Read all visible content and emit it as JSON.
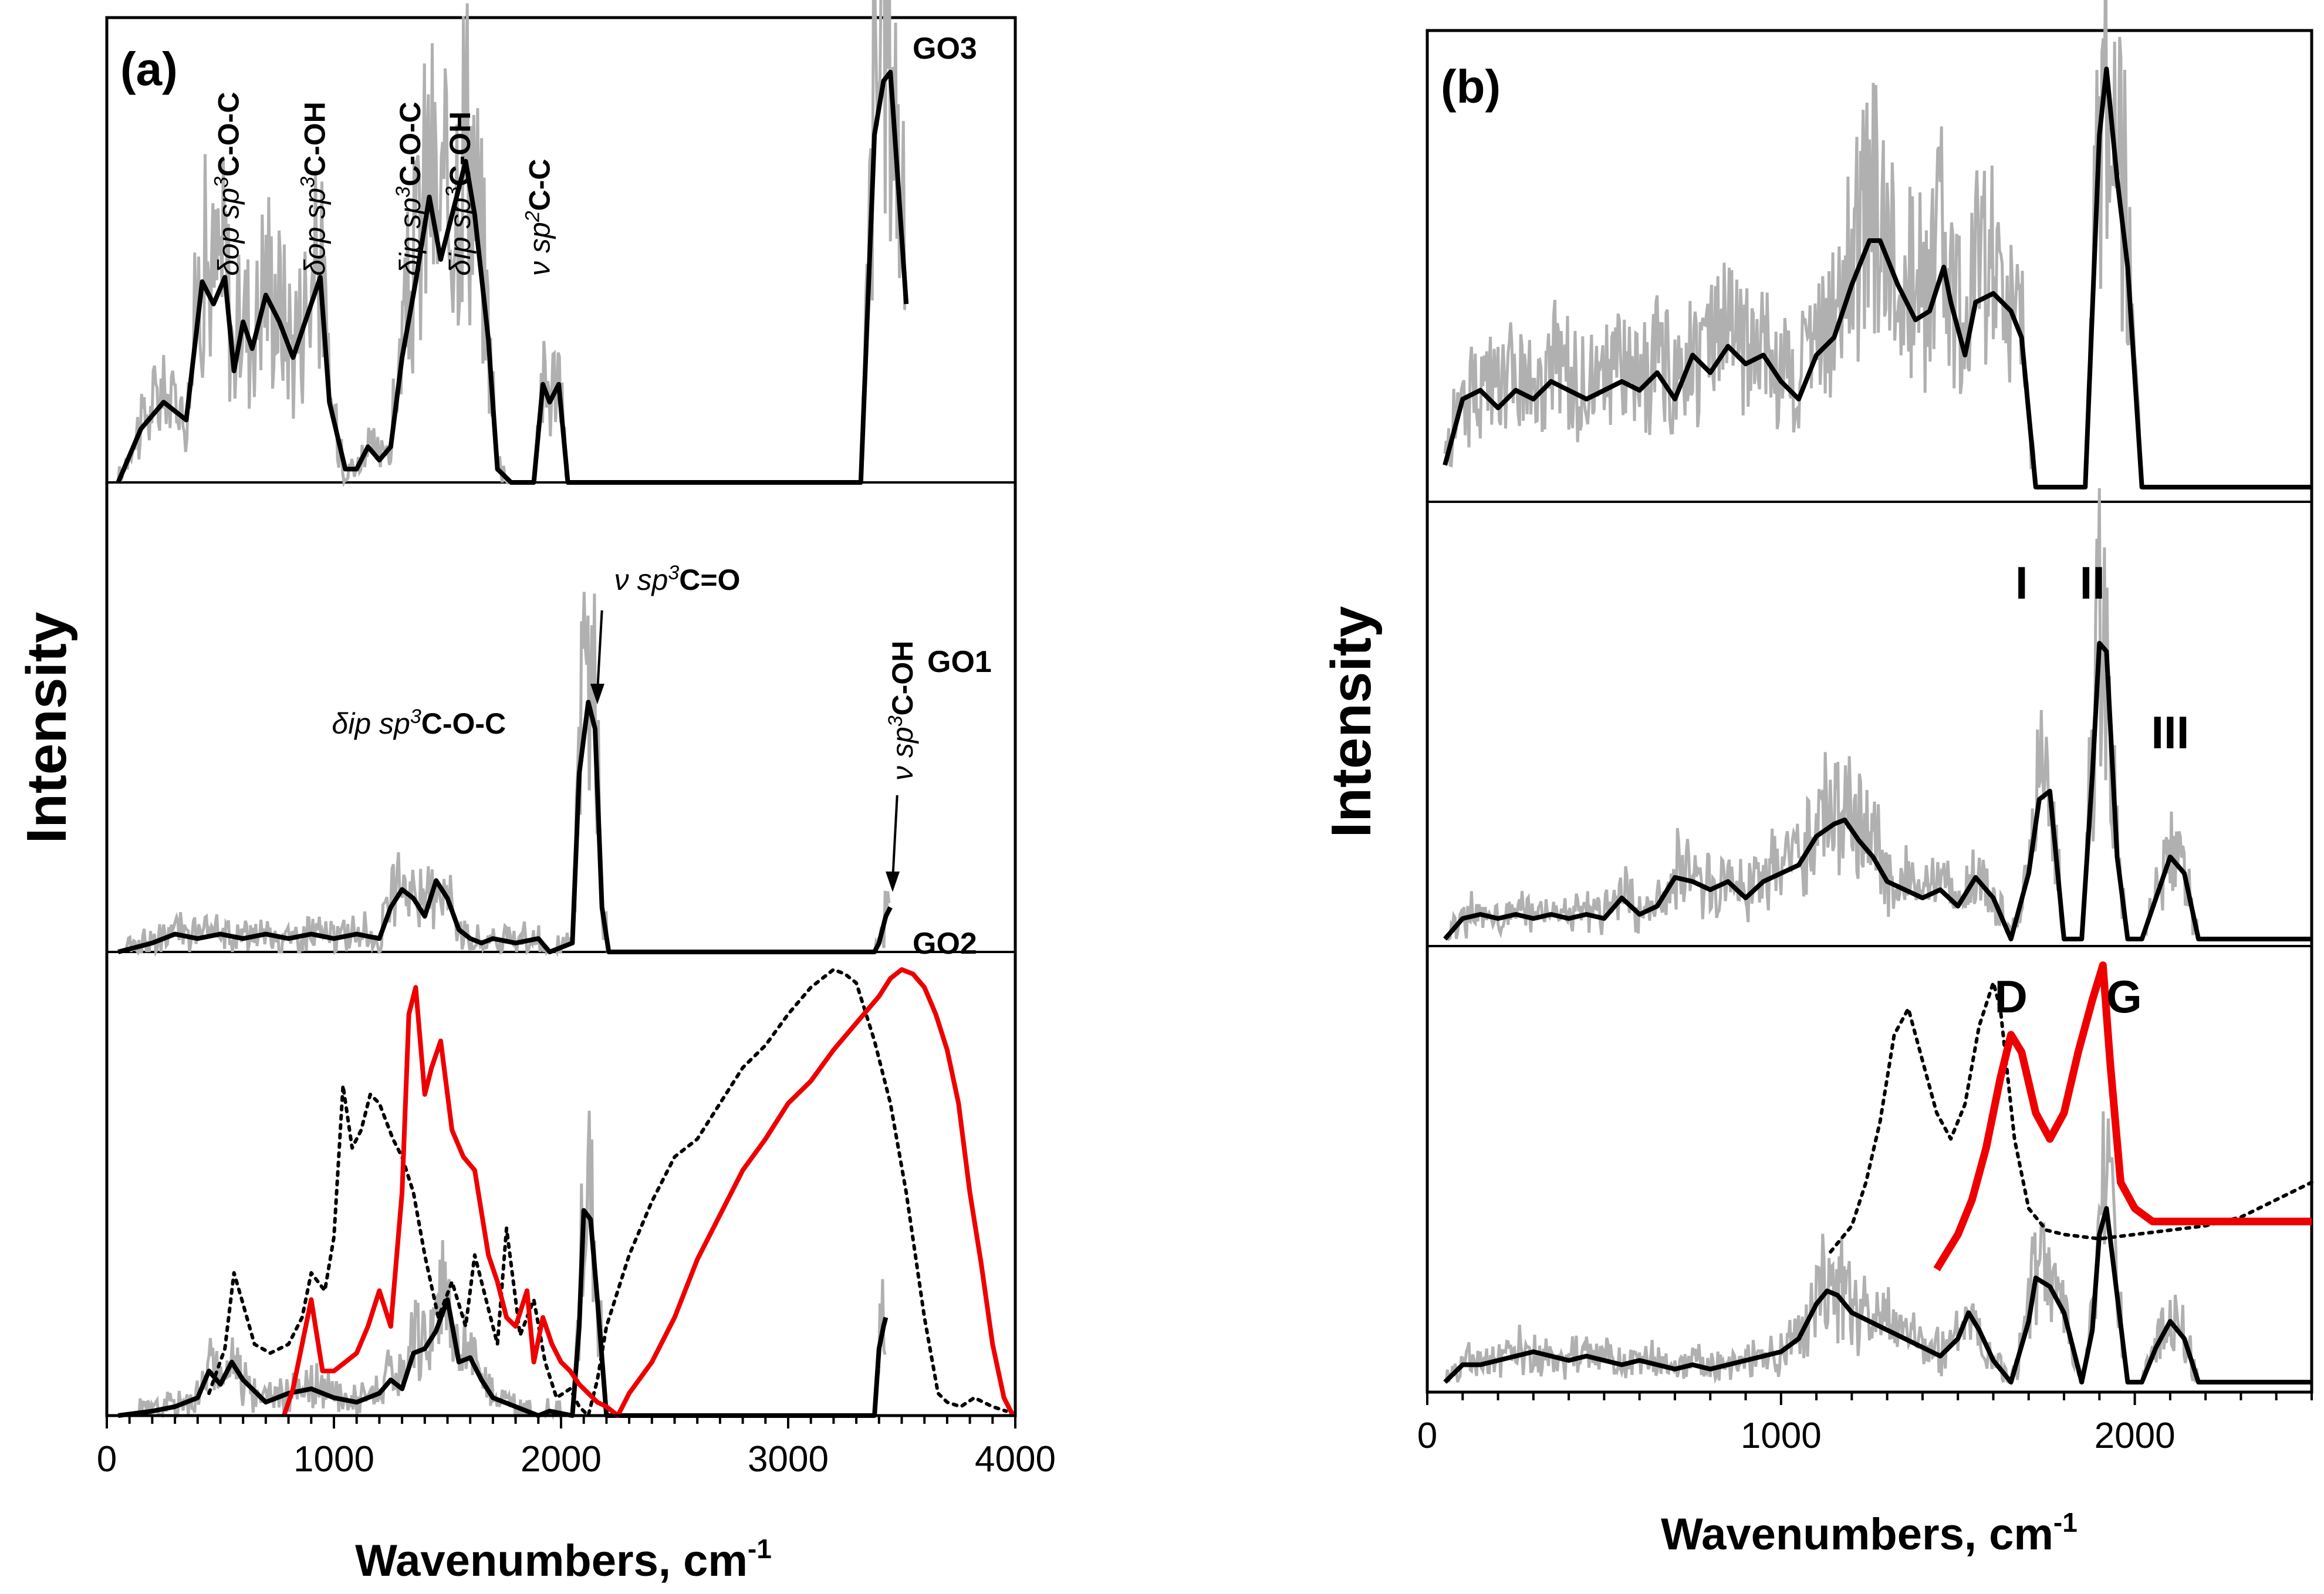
{
  "chart_data": [
    {
      "type": "line",
      "panel": "(a)",
      "xlabel": "Wavenumbers, cm",
      "xlabel_sup": "-1",
      "ylabel": "Intensity",
      "xlim": [
        0,
        4000
      ],
      "xticks": [
        0,
        1000,
        2000,
        3000,
        4000
      ],
      "tick_labels": [
        "0",
        "1000",
        "2000",
        "3000",
        "4000"
      ],
      "trace_labels": [
        "GO3",
        "GO1",
        "GO2"
      ],
      "annotations": [
        {
          "sym": "δ",
          "mode": "op",
          "hyb": "3",
          "group": "C-O-C",
          "x": 580
        },
        {
          "sym": "δ",
          "mode": "op",
          "hyb": "3",
          "group": "C-OH",
          "x": 960
        },
        {
          "sym": "δ",
          "mode": "ip",
          "hyb": "3",
          "group": "C-O-C",
          "x": 1380
        },
        {
          "sym": "δ",
          "mode": "ip",
          "hyb": "3",
          "group": "C-OH",
          "x": 1600
        },
        {
          "sym": "ν",
          "mode": "",
          "hyb": "2",
          "group": "C-C",
          "x": 1950
        }
      ],
      "go1_annotations": [
        {
          "sym": "δ",
          "mode": "ip",
          "hyb": "3",
          "group": "C-O-C",
          "x": 1400
        },
        {
          "sym": "ν",
          "mode": "",
          "hyb": "3",
          "group": "C=O",
          "x": 2150
        },
        {
          "sym": "ν",
          "mode": "",
          "hyb": "3",
          "group": "C-OH",
          "x": 3470
        }
      ],
      "series": [
        {
          "name": "GO3 smoothed",
          "trace": "GO3",
          "color": "#000000",
          "x": [
            50,
            150,
            250,
            350,
            420,
            470,
            520,
            560,
            600,
            640,
            700,
            760,
            820,
            900,
            940,
            980,
            1050,
            1100,
            1150,
            1200,
            1250,
            1300,
            1360,
            1420,
            1470,
            1520,
            1580,
            1620,
            1680,
            1720,
            1780,
            1880,
            1920,
            1950,
            1990,
            2030,
            3320,
            3380,
            3420,
            3450,
            3480,
            3520
          ],
          "y": [
            0,
            0.12,
            0.18,
            0.14,
            0.45,
            0.4,
            0.46,
            0.25,
            0.36,
            0.3,
            0.42,
            0.36,
            0.28,
            0.4,
            0.46,
            0.18,
            0.03,
            0.03,
            0.08,
            0.05,
            0.08,
            0.28,
            0.45,
            0.64,
            0.5,
            0.6,
            0.72,
            0.6,
            0.32,
            0.03,
            0,
            0,
            0.22,
            0.18,
            0.22,
            0,
            0,
            0.78,
            0.9,
            0.92,
            0.7,
            0.4
          ]
        },
        {
          "name": "GO1 smoothed",
          "trace": "GO1",
          "color": "#000000",
          "x": [
            50,
            200,
            300,
            400,
            500,
            600,
            700,
            800,
            900,
            1000,
            1100,
            1200,
            1250,
            1300,
            1350,
            1400,
            1450,
            1500,
            1550,
            1600,
            1650,
            1700,
            1800,
            1900,
            1950,
            2050,
            2080,
            2120,
            2150,
            2180,
            2210,
            3380,
            3400,
            3430,
            3450
          ],
          "y": [
            0,
            0.02,
            0.04,
            0.03,
            0.04,
            0.03,
            0.04,
            0.03,
            0.04,
            0.03,
            0.04,
            0.03,
            0.1,
            0.14,
            0.12,
            0.08,
            0.16,
            0.12,
            0.05,
            0.03,
            0.02,
            0.03,
            0.02,
            0.03,
            0,
            0.02,
            0.4,
            0.56,
            0.5,
            0.1,
            0,
            0,
            0.02,
            0.08,
            0.1
          ]
        },
        {
          "name": "GO2 smoothed",
          "trace": "GO2",
          "color": "#000000",
          "x": [
            50,
            200,
            300,
            400,
            450,
            500,
            550,
            600,
            700,
            800,
            900,
            1000,
            1100,
            1200,
            1250,
            1300,
            1350,
            1400,
            1450,
            1500,
            1550,
            1600,
            1650,
            1700,
            1800,
            1900,
            1950,
            2050,
            2080,
            2100,
            2130,
            2160,
            2200,
            3380,
            3400,
            3420,
            3430
          ],
          "y": [
            0,
            0.01,
            0.02,
            0.04,
            0.1,
            0.07,
            0.12,
            0.08,
            0.03,
            0.05,
            0.06,
            0.04,
            0.03,
            0.05,
            0.08,
            0.06,
            0.14,
            0.15,
            0.19,
            0.26,
            0.12,
            0.13,
            0.08,
            0.04,
            0.02,
            0,
            0.01,
            0,
            0.2,
            0.46,
            0.44,
            0.26,
            0,
            0,
            0.15,
            0.2,
            0.22
          ]
        },
        {
          "name": "GO2 IR (dotted)",
          "trace": "GO2",
          "color": "#000000",
          "dash": "dotted",
          "x": [
            450,
            520,
            560,
            600,
            650,
            720,
            800,
            860,
            900,
            960,
            1000,
            1040,
            1080,
            1120,
            1160,
            1200,
            1260,
            1300,
            1350,
            1400,
            1460,
            1520,
            1580,
            1620,
            1660,
            1720,
            1760,
            1820,
            1880,
            1930,
            1980,
            2040,
            2080,
            2120,
            2160,
            2200,
            2300,
            2400,
            2500,
            2600,
            2700,
            2800,
            2900,
            3000,
            3100,
            3200,
            3250,
            3300,
            3380,
            3450,
            3520,
            3600,
            3660,
            3700,
            3760,
            3820,
            3900,
            3960
          ],
          "y": [
            0.05,
            0.15,
            0.32,
            0.25,
            0.16,
            0.14,
            0.16,
            0.22,
            0.32,
            0.28,
            0.4,
            0.74,
            0.6,
            0.64,
            0.72,
            0.7,
            0.62,
            0.58,
            0.5,
            0.36,
            0.22,
            0.3,
            0.2,
            0.36,
            0.28,
            0.16,
            0.42,
            0.18,
            0.26,
            0.12,
            0.04,
            0.06,
            0.02,
            0,
            0.08,
            0.2,
            0.36,
            0.48,
            0.58,
            0.62,
            0.7,
            0.78,
            0.83,
            0.9,
            0.96,
            1,
            0.99,
            0.97,
            0.84,
            0.7,
            0.5,
            0.22,
            0.05,
            0.03,
            0.02,
            0.04,
            0.02,
            0.01
          ]
        },
        {
          "name": "GO2 red",
          "trace": "GO2",
          "color": "#ee0000",
          "x": [
            780,
            820,
            860,
            900,
            950,
            1000,
            1050,
            1100,
            1150,
            1200,
            1250,
            1300,
            1330,
            1360,
            1400,
            1430,
            1470,
            1520,
            1570,
            1620,
            1680,
            1720,
            1760,
            1800,
            1850,
            1880,
            1920,
            1960,
            2000,
            2040,
            2080,
            2120,
            2160,
            2200,
            2250,
            2300,
            2400,
            2500,
            2600,
            2700,
            2800,
            2900,
            3000,
            3100,
            3200,
            3300,
            3400,
            3450,
            3500,
            3550,
            3600,
            3650,
            3700,
            3750,
            3800,
            3850,
            3900,
            3950,
            3990
          ],
          "y": [
            0,
            0.06,
            0.16,
            0.26,
            0.1,
            0.1,
            0.12,
            0.14,
            0.2,
            0.28,
            0.2,
            0.5,
            0.9,
            0.96,
            0.72,
            0.78,
            0.84,
            0.64,
            0.58,
            0.55,
            0.36,
            0.3,
            0.22,
            0.2,
            0.28,
            0.12,
            0.22,
            0.16,
            0.12,
            0.1,
            0.07,
            0.05,
            0.03,
            0.02,
            0,
            0.05,
            0.12,
            0.22,
            0.35,
            0.45,
            0.55,
            0.62,
            0.7,
            0.75,
            0.82,
            0.88,
            0.94,
            0.98,
            1,
            0.99,
            0.96,
            0.9,
            0.82,
            0.7,
            0.5,
            0.34,
            0.16,
            0.04,
            0
          ]
        }
      ]
    },
    {
      "type": "line",
      "panel": "(b)",
      "xlabel": "Wavenumbers, cm",
      "xlabel_sup": "-1",
      "ylabel": "Intensity",
      "xlim": [
        0,
        2500
      ],
      "xticks": [
        0,
        1000,
        2000
      ],
      "tick_labels": [
        "0",
        "1000",
        "2000"
      ],
      "peak_labels": [
        {
          "text": "I",
          "x": 1680,
          "trace": "middle"
        },
        {
          "text": "II",
          "x": 1880,
          "trace": "middle"
        },
        {
          "text": "III",
          "x": 2100,
          "trace": "middle"
        },
        {
          "text": "D",
          "x": 1650,
          "trace": "bottom"
        },
        {
          "text": "G",
          "x": 1970,
          "trace": "bottom"
        }
      ],
      "series": [
        {
          "name": "top smoothed",
          "trace": "top",
          "color": "#000000",
          "x": [
            50,
            100,
            150,
            200,
            250,
            300,
            350,
            400,
            450,
            500,
            550,
            600,
            650,
            700,
            750,
            800,
            850,
            900,
            950,
            1000,
            1050,
            1100,
            1150,
            1200,
            1250,
            1280,
            1330,
            1380,
            1420,
            1460,
            1480,
            1520,
            1550,
            1600,
            1650,
            1680,
            1720,
            1780,
            1860,
            1900,
            1920,
            1950,
            1980,
            2020,
            2500
          ],
          "y": [
            0.05,
            0.2,
            0.22,
            0.18,
            0.22,
            0.2,
            0.24,
            0.22,
            0.2,
            0.22,
            0.24,
            0.22,
            0.26,
            0.2,
            0.3,
            0.26,
            0.32,
            0.28,
            0.3,
            0.24,
            0.2,
            0.3,
            0.34,
            0.46,
            0.56,
            0.56,
            0.46,
            0.38,
            0.4,
            0.5,
            0.42,
            0.3,
            0.42,
            0.44,
            0.4,
            0.34,
            0,
            0,
            0,
            0.8,
            0.95,
            0.7,
            0.5,
            0,
            0
          ]
        },
        {
          "name": "middle smoothed",
          "trace": "middle",
          "color": "#000000",
          "x": [
            50,
            100,
            150,
            200,
            250,
            300,
            350,
            400,
            450,
            500,
            550,
            600,
            650,
            700,
            750,
            800,
            850,
            900,
            950,
            1000,
            1050,
            1100,
            1150,
            1180,
            1220,
            1260,
            1300,
            1350,
            1400,
            1450,
            1500,
            1550,
            1600,
            1650,
            1700,
            1730,
            1760,
            1800,
            1850,
            1880,
            1900,
            1920,
            1950,
            1980,
            2020,
            2060,
            2100,
            2140,
            2180,
            2500
          ],
          "y": [
            0,
            0.05,
            0.06,
            0.05,
            0.06,
            0.05,
            0.06,
            0.05,
            0.06,
            0.05,
            0.1,
            0.06,
            0.08,
            0.15,
            0.14,
            0.12,
            0.14,
            0.1,
            0.14,
            0.16,
            0.18,
            0.25,
            0.28,
            0.29,
            0.24,
            0.2,
            0.14,
            0.12,
            0.1,
            0.12,
            0.08,
            0.15,
            0.1,
            0,
            0.16,
            0.34,
            0.36,
            0,
            0,
            0.4,
            0.72,
            0.7,
            0.2,
            0,
            0,
            0.1,
            0.2,
            0.16,
            0,
            0
          ]
        },
        {
          "name": "bottom smoothed",
          "trace": "bottom",
          "color": "#000000",
          "x": [
            50,
            100,
            150,
            200,
            250,
            300,
            350,
            400,
            450,
            500,
            550,
            600,
            650,
            700,
            750,
            800,
            850,
            900,
            950,
            1000,
            1050,
            1100,
            1130,
            1160,
            1200,
            1250,
            1300,
            1350,
            1400,
            1450,
            1500,
            1530,
            1560,
            1600,
            1650,
            1700,
            1720,
            1760,
            1800,
            1850,
            1880,
            1900,
            1920,
            1950,
            1980,
            2020,
            2060,
            2100,
            2140,
            2180,
            2500
          ],
          "y": [
            0,
            0.04,
            0.04,
            0.05,
            0.06,
            0.07,
            0.06,
            0.05,
            0.06,
            0.05,
            0.04,
            0.05,
            0.04,
            0.03,
            0.04,
            0.03,
            0.04,
            0.05,
            0.06,
            0.07,
            0.1,
            0.18,
            0.21,
            0.2,
            0.16,
            0.14,
            0.12,
            0.1,
            0.08,
            0.06,
            0.1,
            0.16,
            0.12,
            0.05,
            0,
            0.14,
            0.24,
            0.22,
            0.16,
            0,
            0.12,
            0.34,
            0.4,
            0.2,
            0,
            0,
            0.08,
            0.14,
            0.1,
            0,
            0
          ]
        },
        {
          "name": "bottom dotted",
          "trace": "bottom",
          "color": "#000000",
          "dash": "dotted",
          "x": [
            1140,
            1200,
            1240,
            1280,
            1320,
            1360,
            1400,
            1440,
            1480,
            1520,
            1560,
            1600,
            1620,
            1660,
            1700,
            1750,
            1800,
            1900,
            2000,
            2100,
            2200,
            2300,
            2400,
            2500
          ],
          "y": [
            0.3,
            0.36,
            0.46,
            0.6,
            0.8,
            0.86,
            0.74,
            0.62,
            0.56,
            0.64,
            0.82,
            0.92,
            0.86,
            0.56,
            0.4,
            0.35,
            0.34,
            0.33,
            0.34,
            0.35,
            0.36,
            0.38,
            0.42,
            0.46
          ]
        },
        {
          "name": "bottom red",
          "trace": "bottom",
          "color": "#ee0000",
          "x": [
            1440,
            1500,
            1540,
            1580,
            1620,
            1650,
            1680,
            1720,
            1760,
            1800,
            1840,
            1880,
            1910,
            1930,
            1960,
            2000,
            2050,
            2100,
            2200,
            2300,
            2400,
            2500
          ],
          "y": [
            0.26,
            0.34,
            0.42,
            0.54,
            0.7,
            0.8,
            0.76,
            0.62,
            0.56,
            0.62,
            0.76,
            0.88,
            0.96,
            0.74,
            0.46,
            0.4,
            0.37,
            0.37,
            0.37,
            0.37,
            0.37,
            0.37
          ]
        }
      ]
    }
  ]
}
